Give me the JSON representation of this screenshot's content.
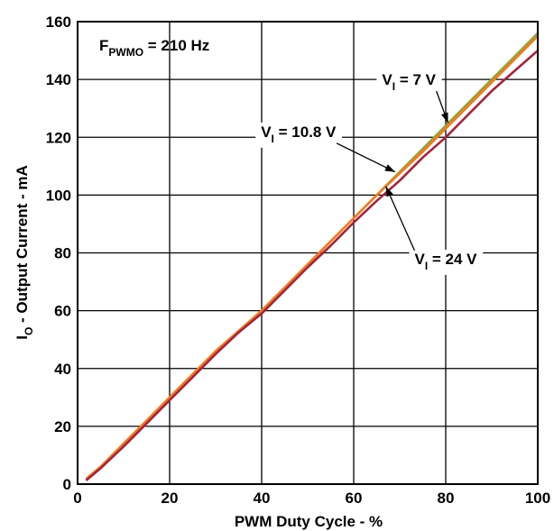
{
  "chart_data": {
    "type": "line",
    "xlabel": "PWM Duty Cycle - %",
    "ylabel": {
      "main": "I",
      "sub": "O",
      "rest": " - Output Current - mA"
    },
    "xlim": [
      0,
      100
    ],
    "ylim": [
      0,
      160
    ],
    "xticks": [
      0,
      20,
      40,
      60,
      80,
      100
    ],
    "yticks": [
      0,
      20,
      40,
      60,
      80,
      100,
      120,
      140,
      160
    ],
    "grid": true,
    "condition": {
      "main": "F",
      "sub": "PWMO",
      "rest": " = 210 Hz"
    },
    "series": [
      {
        "name": {
          "main": "V",
          "sub": "I",
          "rest": " = 7 V"
        },
        "color": "#8fa53a",
        "x": [
          2,
          5,
          10,
          15,
          20,
          25,
          30,
          35,
          40,
          45,
          50,
          55,
          60,
          65,
          70,
          75,
          80,
          85,
          90,
          95,
          100
        ],
        "y": [
          2,
          6,
          14,
          22,
          30,
          38,
          46,
          53,
          60,
          68,
          76,
          84,
          92,
          100,
          108,
          116,
          124,
          132,
          140,
          148,
          156
        ]
      },
      {
        "name": {
          "main": "V",
          "sub": "I",
          "rest": " = 10.8 V"
        },
        "color": "#f47a20",
        "x": [
          2,
          5,
          10,
          15,
          20,
          25,
          30,
          35,
          40,
          45,
          50,
          55,
          60,
          65,
          70,
          75,
          80,
          85,
          90,
          95,
          100
        ],
        "y": [
          2,
          6,
          14,
          22,
          30,
          38,
          46,
          53,
          60,
          68,
          76,
          84,
          92,
          100,
          107.5,
          115,
          123,
          131,
          139,
          147,
          155
        ]
      },
      {
        "name": {
          "main": "V",
          "sub": "I",
          "rest": " = 24 V"
        },
        "color": "#a4243b",
        "x": [
          2,
          5,
          10,
          15,
          20,
          25,
          30,
          35,
          40,
          45,
          50,
          55,
          60,
          65,
          70,
          75,
          80,
          85,
          90,
          95,
          100
        ],
        "y": [
          1.5,
          5.5,
          13,
          21,
          29,
          37,
          45,
          52.5,
          59,
          67,
          75,
          82.5,
          90.5,
          98,
          105,
          113,
          120,
          128,
          136,
          143,
          150
        ]
      }
    ],
    "annotations": [
      {
        "series": 0,
        "text_at": [
          72,
          140
        ],
        "arrow_to": [
          80.5,
          125
        ]
      },
      {
        "series": 1,
        "text_at": [
          48,
          122
        ],
        "arrow_to": [
          69,
          108
        ]
      },
      {
        "series": 2,
        "text_at": [
          80,
          78
        ],
        "arrow_to": [
          67,
          103
        ]
      }
    ]
  }
}
